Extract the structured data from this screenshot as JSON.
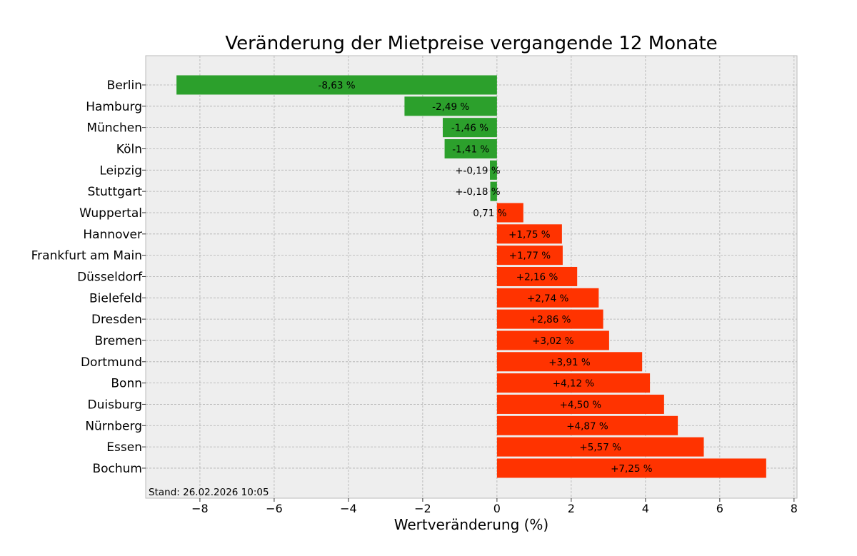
{
  "chart_data": {
    "type": "bar",
    "orientation": "horizontal",
    "title": "Veränderung der Mietpreise vergangende 12 Monate",
    "xlabel": "Wertveränderung (%)",
    "ylabel": "",
    "xlim": [
      -9.46,
      8.08
    ],
    "xticks": [
      -8,
      -6,
      -4,
      -2,
      0,
      2,
      4,
      6,
      8
    ],
    "xtick_labels": [
      "−8",
      "−6",
      "−4",
      "−2",
      "0",
      "2",
      "4",
      "6",
      "8"
    ],
    "grid": true,
    "annotation": "Stand: 26.02.2026 10:05",
    "colors": {
      "negative": "#2ca02c",
      "positive": "#ff3300",
      "background": "#eeeeee"
    },
    "categories": [
      "Berlin",
      "Hamburg",
      "München",
      "Köln",
      "Leipzig",
      "Stuttgart",
      "Wuppertal",
      "Hannover",
      "Frankfurt am Main",
      "Düsseldorf",
      "Bielefeld",
      "Dresden",
      "Bremen",
      "Dortmund",
      "Bonn",
      "Duisburg",
      "Nürnberg",
      "Essen",
      "Bochum"
    ],
    "values": [
      -8.63,
      -2.49,
      -1.46,
      -1.41,
      -0.19,
      -0.18,
      0.71,
      1.75,
      1.77,
      2.16,
      2.74,
      2.86,
      3.02,
      3.91,
      4.12,
      4.5,
      4.87,
      5.57,
      7.25
    ],
    "data_labels": [
      "-8,63 %",
      "-2,49 %",
      "-1,46 %",
      "-1,41 %",
      "+-0,19 %",
      "+-0,18 %",
      "0,71 %",
      "+1,75 %",
      "+1,77 %",
      "+2,16 %",
      "+2,74 %",
      "+2,86 %",
      "+3,02 %",
      "+3,91 %",
      "+4,12 %",
      "+4,50 %",
      "+4,87 %",
      "+5,57 %",
      "+7,25 %"
    ]
  }
}
